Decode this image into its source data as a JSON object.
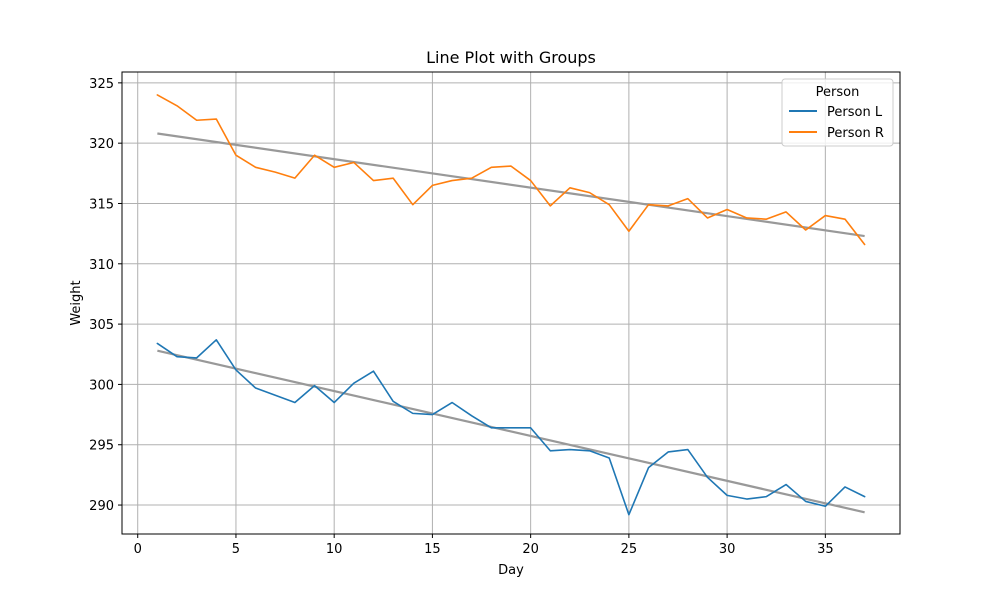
{
  "chart_data": {
    "type": "line",
    "title": "Line Plot with Groups",
    "xlabel": "Day",
    "ylabel": "Weight",
    "xlim": [
      -0.8,
      38.8
    ],
    "ylim": [
      287.6,
      325.9
    ],
    "xticks": [
      0,
      5,
      10,
      15,
      20,
      25,
      30,
      35
    ],
    "yticks": [
      290,
      295,
      300,
      305,
      310,
      315,
      320,
      325
    ],
    "grid": true,
    "legend": {
      "title": "Person",
      "placement": "top-right"
    },
    "x": [
      1,
      2,
      3,
      4,
      5,
      6,
      7,
      8,
      9,
      10,
      11,
      12,
      13,
      14,
      15,
      16,
      17,
      18,
      19,
      20,
      21,
      22,
      23,
      24,
      25,
      26,
      27,
      28,
      29,
      30,
      31,
      32,
      33,
      34,
      35,
      36,
      37
    ],
    "series": [
      {
        "name": "Person L",
        "color": "#1f77b4",
        "values": [
          303.4,
          302.3,
          302.2,
          303.7,
          301.2,
          299.7,
          299.1,
          298.5,
          299.9,
          298.5,
          300.1,
          301.1,
          298.6,
          297.6,
          297.5,
          298.5,
          297.4,
          296.4,
          296.4,
          296.4,
          294.5,
          294.6,
          294.5,
          293.9,
          289.2,
          293.1,
          294.4,
          294.6,
          292.3,
          290.8,
          290.5,
          290.7,
          291.7,
          290.3,
          289.9,
          291.5,
          290.7
        ]
      },
      {
        "name": "Person R",
        "color": "#ff7f0e",
        "values": [
          324.0,
          323.1,
          321.9,
          322.0,
          319.0,
          318.0,
          317.6,
          317.1,
          319.0,
          318.0,
          318.4,
          316.9,
          317.1,
          314.9,
          316.5,
          316.9,
          317.1,
          318.0,
          318.1,
          316.9,
          314.8,
          316.3,
          315.9,
          314.9,
          312.7,
          314.9,
          314.8,
          315.4,
          313.8,
          314.5,
          313.8,
          313.7,
          314.3,
          312.8,
          314.0,
          313.7,
          311.6
        ]
      }
    ],
    "trendlines": [
      {
        "series": "Person L",
        "color": "#999999",
        "start": [
          1,
          302.8
        ],
        "end": [
          37,
          289.4
        ]
      },
      {
        "series": "Person R",
        "color": "#999999",
        "start": [
          1,
          320.8
        ],
        "end": [
          37,
          312.3
        ]
      }
    ]
  }
}
